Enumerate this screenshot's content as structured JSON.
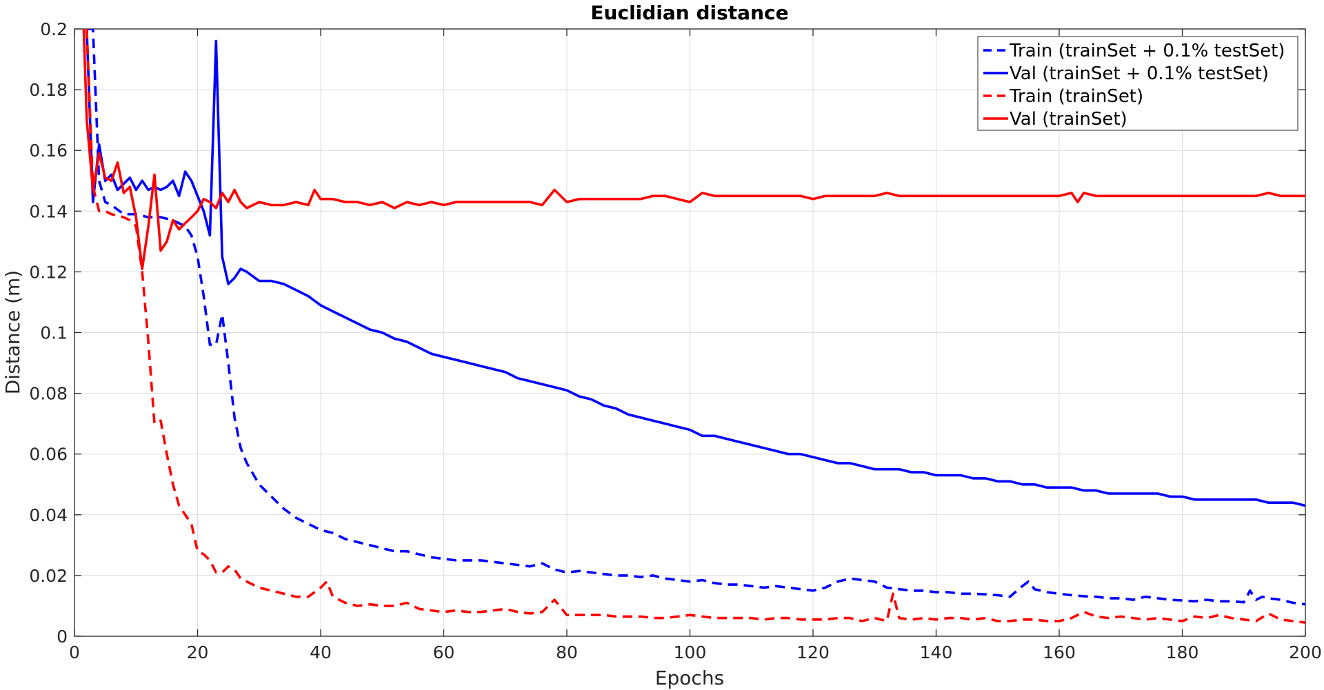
{
  "chart_data": {
    "type": "line",
    "title": "Euclidian distance",
    "xlabel": "Epochs",
    "ylabel": "Distance (m)",
    "xlim": [
      0,
      200
    ],
    "ylim": [
      0,
      0.2
    ],
    "xticks": [
      0,
      20,
      40,
      60,
      80,
      100,
      120,
      140,
      160,
      180,
      200
    ],
    "xtick_labels": [
      "0",
      "20",
      "40",
      "60",
      "80",
      "100",
      "120",
      "140",
      "160",
      "180",
      "200"
    ],
    "yticks": [
      0,
      0.02,
      0.04,
      0.06,
      0.08,
      0.1,
      0.12,
      0.14,
      0.16,
      0.18,
      0.2
    ],
    "ytick_labels": [
      "0",
      "0.02",
      "0.04",
      "0.06",
      "0.08",
      "0.1",
      "0.12",
      "0.14",
      "0.16",
      "0.18",
      "0.2"
    ],
    "grid": true,
    "legend_position": "top-right",
    "series": [
      {
        "name": "Train (trainSet + 0.1% testSet)",
        "color": "#0000ff",
        "style": "dashed",
        "x": [
          2,
          3,
          4,
          5,
          6,
          8,
          10,
          12,
          14,
          16,
          18,
          19,
          20,
          21,
          22,
          23,
          24,
          25,
          26,
          27,
          28,
          30,
          32,
          34,
          36,
          38,
          40,
          42,
          44,
          46,
          48,
          50,
          52,
          54,
          56,
          58,
          60,
          62,
          64,
          66,
          68,
          70,
          72,
          74,
          76,
          78,
          80,
          82,
          84,
          86,
          88,
          90,
          92,
          94,
          96,
          98,
          100,
          102,
          104,
          106,
          108,
          110,
          112,
          114,
          116,
          118,
          120,
          122,
          124,
          126,
          128,
          130,
          132,
          134,
          136,
          138,
          140,
          142,
          144,
          146,
          148,
          150,
          152,
          154,
          155,
          156,
          158,
          160,
          162,
          164,
          166,
          168,
          170,
          172,
          174,
          176,
          178,
          180,
          182,
          184,
          186,
          188,
          190,
          191,
          192,
          193,
          194,
          196,
          198,
          200
        ],
        "values": [
          0.2,
          0.2,
          0.15,
          0.143,
          0.142,
          0.139,
          0.139,
          0.138,
          0.138,
          0.137,
          0.135,
          0.132,
          0.125,
          0.112,
          0.096,
          0.096,
          0.106,
          0.09,
          0.072,
          0.062,
          0.057,
          0.05,
          0.046,
          0.042,
          0.039,
          0.037,
          0.035,
          0.034,
          0.032,
          0.031,
          0.03,
          0.029,
          0.028,
          0.028,
          0.027,
          0.026,
          0.0255,
          0.025,
          0.025,
          0.025,
          0.0245,
          0.024,
          0.0235,
          0.023,
          0.024,
          0.022,
          0.021,
          0.0215,
          0.021,
          0.0205,
          0.02,
          0.02,
          0.0195,
          0.02,
          0.019,
          0.0185,
          0.018,
          0.0185,
          0.0175,
          0.017,
          0.017,
          0.0165,
          0.016,
          0.0165,
          0.016,
          0.0155,
          0.015,
          0.016,
          0.018,
          0.019,
          0.0185,
          0.018,
          0.016,
          0.0155,
          0.015,
          0.015,
          0.0145,
          0.0145,
          0.014,
          0.014,
          0.0138,
          0.0135,
          0.013,
          0.0165,
          0.018,
          0.0155,
          0.0145,
          0.014,
          0.0135,
          0.0132,
          0.013,
          0.0125,
          0.0125,
          0.012,
          0.013,
          0.0125,
          0.012,
          0.0118,
          0.0115,
          0.012,
          0.0115,
          0.0115,
          0.0112,
          0.015,
          0.012,
          0.013,
          0.0125,
          0.012,
          0.011,
          0.0105
        ]
      },
      {
        "name": "Val (trainSet + 0.1% testSet)",
        "color": "#0000ff",
        "style": "solid",
        "x": [
          2,
          3,
          4,
          5,
          6,
          7,
          8,
          9,
          10,
          11,
          12,
          13,
          14,
          15,
          16,
          17,
          18,
          19,
          20,
          21,
          22,
          23,
          24,
          25,
          26,
          27,
          28,
          30,
          32,
          34,
          36,
          38,
          40,
          42,
          44,
          46,
          48,
          50,
          52,
          54,
          56,
          58,
          60,
          62,
          64,
          66,
          68,
          70,
          72,
          74,
          76,
          78,
          80,
          82,
          84,
          86,
          88,
          90,
          92,
          94,
          96,
          98,
          100,
          102,
          104,
          106,
          108,
          110,
          112,
          114,
          116,
          118,
          120,
          122,
          124,
          126,
          128,
          130,
          132,
          134,
          136,
          138,
          140,
          142,
          144,
          146,
          148,
          150,
          152,
          154,
          156,
          158,
          160,
          162,
          164,
          166,
          168,
          170,
          172,
          174,
          176,
          178,
          180,
          182,
          184,
          186,
          188,
          190,
          192,
          194,
          196,
          198,
          200
        ],
        "values": [
          0.2,
          0.143,
          0.162,
          0.15,
          0.152,
          0.147,
          0.149,
          0.151,
          0.147,
          0.15,
          0.147,
          0.148,
          0.147,
          0.148,
          0.15,
          0.145,
          0.153,
          0.15,
          0.145,
          0.14,
          0.132,
          0.196,
          0.125,
          0.116,
          0.118,
          0.121,
          0.12,
          0.117,
          0.117,
          0.116,
          0.114,
          0.112,
          0.109,
          0.107,
          0.105,
          0.103,
          0.101,
          0.1,
          0.098,
          0.097,
          0.095,
          0.093,
          0.092,
          0.091,
          0.09,
          0.089,
          0.088,
          0.087,
          0.085,
          0.084,
          0.083,
          0.082,
          0.081,
          0.079,
          0.078,
          0.076,
          0.075,
          0.073,
          0.072,
          0.071,
          0.07,
          0.069,
          0.068,
          0.066,
          0.066,
          0.065,
          0.064,
          0.063,
          0.062,
          0.061,
          0.06,
          0.06,
          0.059,
          0.058,
          0.057,
          0.057,
          0.056,
          0.055,
          0.055,
          0.055,
          0.054,
          0.054,
          0.053,
          0.053,
          0.053,
          0.052,
          0.052,
          0.051,
          0.051,
          0.05,
          0.05,
          0.049,
          0.049,
          0.049,
          0.048,
          0.048,
          0.047,
          0.047,
          0.047,
          0.047,
          0.047,
          0.046,
          0.046,
          0.045,
          0.045,
          0.045,
          0.045,
          0.045,
          0.045,
          0.044,
          0.044,
          0.044,
          0.043
        ]
      },
      {
        "name": "Train (trainSet)",
        "color": "#ff0000",
        "style": "dashed",
        "x": [
          2,
          3,
          4,
          5,
          6,
          8,
          9,
          10,
          11,
          12,
          13,
          14,
          15,
          16,
          17,
          18,
          19,
          20,
          21,
          22,
          23,
          24,
          25,
          26,
          27,
          28,
          30,
          32,
          34,
          36,
          38,
          40,
          41,
          42,
          44,
          46,
          48,
          50,
          52,
          54,
          56,
          58,
          60,
          62,
          64,
          66,
          68,
          70,
          72,
          74,
          76,
          78,
          80,
          82,
          84,
          86,
          88,
          90,
          92,
          94,
          96,
          98,
          100,
          102,
          104,
          106,
          108,
          110,
          112,
          114,
          116,
          118,
          120,
          122,
          124,
          126,
          128,
          130,
          132,
          133,
          134,
          136,
          138,
          140,
          142,
          144,
          146,
          148,
          150,
          152,
          154,
          156,
          158,
          160,
          162,
          164,
          166,
          168,
          170,
          172,
          174,
          176,
          178,
          180,
          182,
          184,
          186,
          188,
          190,
          192,
          194,
          196,
          198,
          200
        ],
        "values": [
          0.2,
          0.148,
          0.14,
          0.14,
          0.139,
          0.138,
          0.137,
          0.135,
          0.12,
          0.097,
          0.07,
          0.071,
          0.06,
          0.05,
          0.043,
          0.04,
          0.037,
          0.028,
          0.027,
          0.025,
          0.021,
          0.021,
          0.023,
          0.022,
          0.019,
          0.018,
          0.016,
          0.015,
          0.014,
          0.013,
          0.013,
          0.016,
          0.018,
          0.013,
          0.011,
          0.01,
          0.0105,
          0.01,
          0.01,
          0.011,
          0.009,
          0.0085,
          0.008,
          0.0085,
          0.008,
          0.008,
          0.0085,
          0.009,
          0.008,
          0.0075,
          0.008,
          0.012,
          0.007,
          0.007,
          0.007,
          0.007,
          0.0065,
          0.0065,
          0.0065,
          0.006,
          0.006,
          0.0065,
          0.007,
          0.0065,
          0.006,
          0.006,
          0.006,
          0.006,
          0.0055,
          0.006,
          0.006,
          0.0055,
          0.0055,
          0.0055,
          0.006,
          0.006,
          0.005,
          0.006,
          0.005,
          0.014,
          0.006,
          0.0055,
          0.006,
          0.0055,
          0.006,
          0.006,
          0.0055,
          0.006,
          0.005,
          0.005,
          0.0055,
          0.0055,
          0.005,
          0.005,
          0.006,
          0.008,
          0.0065,
          0.006,
          0.0065,
          0.006,
          0.0055,
          0.006,
          0.0055,
          0.005,
          0.0065,
          0.006,
          0.007,
          0.006,
          0.0055,
          0.005,
          0.0075,
          0.0055,
          0.005,
          0.0045
        ]
      },
      {
        "name": "Val (trainSet)",
        "color": "#ff0000",
        "style": "solid",
        "x": [
          1.5,
          2,
          3,
          4,
          5,
          6,
          7,
          8,
          9,
          10,
          11,
          12,
          13,
          14,
          15,
          16,
          17,
          18,
          19,
          20,
          21,
          22,
          23,
          24,
          25,
          26,
          27,
          28,
          30,
          32,
          34,
          36,
          38,
          39,
          40,
          42,
          44,
          46,
          48,
          50,
          52,
          54,
          56,
          58,
          60,
          62,
          64,
          66,
          68,
          70,
          72,
          74,
          76,
          78,
          80,
          82,
          84,
          86,
          88,
          90,
          92,
          94,
          96,
          98,
          100,
          102,
          104,
          106,
          108,
          110,
          112,
          114,
          116,
          118,
          120,
          122,
          124,
          126,
          128,
          130,
          132,
          134,
          136,
          138,
          140,
          142,
          144,
          146,
          148,
          150,
          152,
          154,
          156,
          158,
          160,
          162,
          163,
          164,
          166,
          168,
          170,
          172,
          174,
          176,
          178,
          180,
          182,
          184,
          186,
          188,
          190,
          192,
          194,
          196,
          198,
          200
        ],
        "values": [
          0.2,
          0.17,
          0.147,
          0.159,
          0.151,
          0.15,
          0.156,
          0.146,
          0.148,
          0.138,
          0.121,
          0.135,
          0.152,
          0.127,
          0.13,
          0.137,
          0.134,
          0.136,
          0.138,
          0.14,
          0.144,
          0.143,
          0.141,
          0.146,
          0.143,
          0.147,
          0.143,
          0.141,
          0.143,
          0.142,
          0.142,
          0.143,
          0.142,
          0.147,
          0.144,
          0.144,
          0.143,
          0.143,
          0.142,
          0.143,
          0.141,
          0.143,
          0.142,
          0.143,
          0.142,
          0.143,
          0.143,
          0.143,
          0.143,
          0.143,
          0.143,
          0.143,
          0.142,
          0.147,
          0.143,
          0.144,
          0.144,
          0.144,
          0.144,
          0.144,
          0.144,
          0.145,
          0.145,
          0.144,
          0.143,
          0.146,
          0.145,
          0.145,
          0.145,
          0.145,
          0.145,
          0.145,
          0.145,
          0.145,
          0.144,
          0.145,
          0.145,
          0.145,
          0.145,
          0.145,
          0.146,
          0.145,
          0.145,
          0.145,
          0.145,
          0.145,
          0.145,
          0.145,
          0.145,
          0.145,
          0.145,
          0.145,
          0.145,
          0.145,
          0.145,
          0.146,
          0.143,
          0.146,
          0.145,
          0.145,
          0.145,
          0.145,
          0.145,
          0.145,
          0.145,
          0.145,
          0.145,
          0.145,
          0.145,
          0.145,
          0.145,
          0.145,
          0.146,
          0.145,
          0.145,
          0.145
        ]
      }
    ]
  }
}
